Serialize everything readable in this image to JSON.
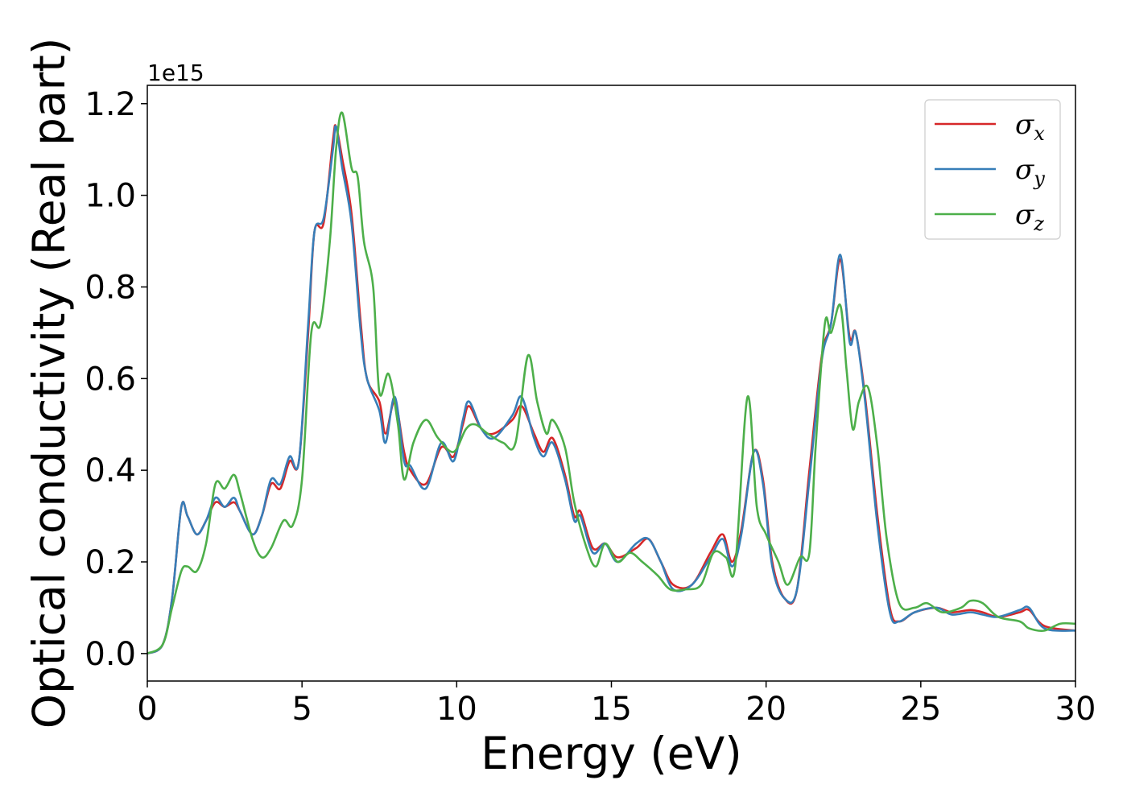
{
  "chart_data": {
    "type": "line",
    "title": "",
    "xlabel": "Energy (eV)",
    "ylabel": "Optical conductivity (Real part)",
    "y_offset_label": "1e15",
    "y_scale": 1000000000000000.0,
    "xlim": [
      0,
      30
    ],
    "ylim": [
      -0.06,
      1.24
    ],
    "x_ticks": [
      0,
      5,
      10,
      15,
      20,
      25,
      30
    ],
    "x_tick_labels": [
      "0",
      "5",
      "10",
      "15",
      "20",
      "25",
      "30"
    ],
    "y_ticks": [
      0.0,
      0.2,
      0.4,
      0.6,
      0.8,
      1.0,
      1.2
    ],
    "y_tick_labels": [
      "0.0",
      "0.2",
      "0.4",
      "0.6",
      "0.8",
      "1.0",
      "1.2"
    ],
    "grid": false,
    "legend_position": "top-right",
    "series": [
      {
        "name": "σx",
        "symbol": "σ",
        "subscript": "x",
        "color": "#d62728",
        "points": [
          [
            0,
            0
          ],
          [
            0.5,
            0.02
          ],
          [
            0.8,
            0.12
          ],
          [
            1.1,
            0.32
          ],
          [
            1.3,
            0.3
          ],
          [
            1.6,
            0.26
          ],
          [
            1.9,
            0.29
          ],
          [
            2.2,
            0.33
          ],
          [
            2.5,
            0.32
          ],
          [
            2.8,
            0.33
          ],
          [
            3.0,
            0.31
          ],
          [
            3.4,
            0.26
          ],
          [
            3.7,
            0.3
          ],
          [
            4.0,
            0.37
          ],
          [
            4.3,
            0.36
          ],
          [
            4.6,
            0.42
          ],
          [
            4.9,
            0.42
          ],
          [
            5.2,
            0.7
          ],
          [
            5.4,
            0.92
          ],
          [
            5.7,
            0.94
          ],
          [
            6.0,
            1.12
          ],
          [
            6.1,
            1.15
          ],
          [
            6.3,
            1.08
          ],
          [
            6.6,
            0.96
          ],
          [
            6.9,
            0.72
          ],
          [
            7.1,
            0.6
          ],
          [
            7.5,
            0.55
          ],
          [
            7.7,
            0.48
          ],
          [
            8.0,
            0.55
          ],
          [
            8.3,
            0.44
          ],
          [
            8.5,
            0.4
          ],
          [
            9.0,
            0.37
          ],
          [
            9.5,
            0.45
          ],
          [
            9.9,
            0.43
          ],
          [
            10.2,
            0.5
          ],
          [
            10.4,
            0.54
          ],
          [
            10.8,
            0.49
          ],
          [
            11.2,
            0.48
          ],
          [
            11.8,
            0.51
          ],
          [
            12.1,
            0.54
          ],
          [
            12.5,
            0.48
          ],
          [
            12.8,
            0.44
          ],
          [
            13.1,
            0.47
          ],
          [
            13.5,
            0.39
          ],
          [
            13.8,
            0.3
          ],
          [
            14.0,
            0.31
          ],
          [
            14.4,
            0.23
          ],
          [
            14.8,
            0.24
          ],
          [
            15.2,
            0.21
          ],
          [
            15.8,
            0.23
          ],
          [
            16.2,
            0.25
          ],
          [
            16.6,
            0.2
          ],
          [
            17.0,
            0.15
          ],
          [
            17.6,
            0.15
          ],
          [
            18.2,
            0.22
          ],
          [
            18.6,
            0.26
          ],
          [
            18.9,
            0.2
          ],
          [
            19.2,
            0.27
          ],
          [
            19.6,
            0.44
          ],
          [
            19.9,
            0.38
          ],
          [
            20.2,
            0.2
          ],
          [
            20.6,
            0.12
          ],
          [
            21.0,
            0.14
          ],
          [
            21.4,
            0.4
          ],
          [
            21.8,
            0.65
          ],
          [
            22.1,
            0.72
          ],
          [
            22.4,
            0.86
          ],
          [
            22.7,
            0.69
          ],
          [
            22.9,
            0.7
          ],
          [
            23.2,
            0.56
          ],
          [
            23.6,
            0.3
          ],
          [
            24.0,
            0.1
          ],
          [
            24.3,
            0.07
          ],
          [
            24.8,
            0.09
          ],
          [
            25.5,
            0.1
          ],
          [
            26.0,
            0.09
          ],
          [
            26.6,
            0.095
          ],
          [
            27.0,
            0.09
          ],
          [
            27.5,
            0.08
          ],
          [
            28.2,
            0.09
          ],
          [
            28.5,
            0.095
          ],
          [
            29.0,
            0.06
          ],
          [
            30,
            0.05
          ]
        ]
      },
      {
        "name": "σy",
        "symbol": "σ",
        "subscript": "y",
        "color": "#377eb8",
        "points": [
          [
            0,
            0
          ],
          [
            0.5,
            0.02
          ],
          [
            0.8,
            0.12
          ],
          [
            1.1,
            0.32
          ],
          [
            1.3,
            0.3
          ],
          [
            1.6,
            0.26
          ],
          [
            1.9,
            0.29
          ],
          [
            2.2,
            0.34
          ],
          [
            2.5,
            0.32
          ],
          [
            2.8,
            0.34
          ],
          [
            3.0,
            0.31
          ],
          [
            3.4,
            0.26
          ],
          [
            3.7,
            0.3
          ],
          [
            4.0,
            0.38
          ],
          [
            4.3,
            0.37
          ],
          [
            4.6,
            0.43
          ],
          [
            4.9,
            0.42
          ],
          [
            5.2,
            0.72
          ],
          [
            5.4,
            0.92
          ],
          [
            5.7,
            0.95
          ],
          [
            6.0,
            1.1
          ],
          [
            6.1,
            1.15
          ],
          [
            6.3,
            1.06
          ],
          [
            6.6,
            0.94
          ],
          [
            6.9,
            0.7
          ],
          [
            7.1,
            0.6
          ],
          [
            7.5,
            0.53
          ],
          [
            7.7,
            0.46
          ],
          [
            8.0,
            0.56
          ],
          [
            8.3,
            0.42
          ],
          [
            8.5,
            0.41
          ],
          [
            9.0,
            0.36
          ],
          [
            9.5,
            0.46
          ],
          [
            9.9,
            0.42
          ],
          [
            10.2,
            0.51
          ],
          [
            10.4,
            0.55
          ],
          [
            10.8,
            0.49
          ],
          [
            11.2,
            0.47
          ],
          [
            11.8,
            0.52
          ],
          [
            12.1,
            0.56
          ],
          [
            12.5,
            0.47
          ],
          [
            12.8,
            0.43
          ],
          [
            13.1,
            0.46
          ],
          [
            13.5,
            0.38
          ],
          [
            13.8,
            0.29
          ],
          [
            14.0,
            0.3
          ],
          [
            14.4,
            0.22
          ],
          [
            14.8,
            0.24
          ],
          [
            15.2,
            0.2
          ],
          [
            15.8,
            0.24
          ],
          [
            16.2,
            0.25
          ],
          [
            16.6,
            0.2
          ],
          [
            17.0,
            0.14
          ],
          [
            17.6,
            0.15
          ],
          [
            18.2,
            0.21
          ],
          [
            18.6,
            0.25
          ],
          [
            18.9,
            0.19
          ],
          [
            19.2,
            0.26
          ],
          [
            19.6,
            0.44
          ],
          [
            19.9,
            0.37
          ],
          [
            20.2,
            0.19
          ],
          [
            20.6,
            0.12
          ],
          [
            21.0,
            0.14
          ],
          [
            21.4,
            0.38
          ],
          [
            21.8,
            0.64
          ],
          [
            22.1,
            0.72
          ],
          [
            22.4,
            0.87
          ],
          [
            22.7,
            0.68
          ],
          [
            22.9,
            0.7
          ],
          [
            23.2,
            0.55
          ],
          [
            23.6,
            0.28
          ],
          [
            24.0,
            0.09
          ],
          [
            24.3,
            0.07
          ],
          [
            24.8,
            0.09
          ],
          [
            25.5,
            0.1
          ],
          [
            26.0,
            0.085
          ],
          [
            26.6,
            0.09
          ],
          [
            27.0,
            0.085
          ],
          [
            27.5,
            0.08
          ],
          [
            28.2,
            0.095
          ],
          [
            28.5,
            0.1
          ],
          [
            29.0,
            0.055
          ],
          [
            30,
            0.05
          ]
        ]
      },
      {
        "name": "σz",
        "symbol": "σ",
        "subscript": "z",
        "color": "#4daf4a",
        "points": [
          [
            0,
            0
          ],
          [
            0.5,
            0.02
          ],
          [
            0.8,
            0.1
          ],
          [
            1.1,
            0.18
          ],
          [
            1.3,
            0.19
          ],
          [
            1.6,
            0.18
          ],
          [
            1.9,
            0.24
          ],
          [
            2.2,
            0.37
          ],
          [
            2.5,
            0.36
          ],
          [
            2.8,
            0.39
          ],
          [
            3.0,
            0.35
          ],
          [
            3.4,
            0.25
          ],
          [
            3.7,
            0.21
          ],
          [
            4.0,
            0.23
          ],
          [
            4.4,
            0.29
          ],
          [
            4.7,
            0.28
          ],
          [
            5.0,
            0.38
          ],
          [
            5.3,
            0.7
          ],
          [
            5.6,
            0.72
          ],
          [
            5.9,
            0.9
          ],
          [
            6.1,
            1.1
          ],
          [
            6.3,
            1.18
          ],
          [
            6.6,
            1.06
          ],
          [
            6.8,
            1.04
          ],
          [
            7.0,
            0.9
          ],
          [
            7.3,
            0.8
          ],
          [
            7.5,
            0.57
          ],
          [
            7.8,
            0.61
          ],
          [
            8.1,
            0.5
          ],
          [
            8.3,
            0.38
          ],
          [
            8.6,
            0.46
          ],
          [
            9.0,
            0.51
          ],
          [
            9.4,
            0.47
          ],
          [
            9.9,
            0.44
          ],
          [
            10.3,
            0.49
          ],
          [
            10.6,
            0.5
          ],
          [
            11.0,
            0.48
          ],
          [
            11.5,
            0.46
          ],
          [
            11.9,
            0.46
          ],
          [
            12.3,
            0.65
          ],
          [
            12.6,
            0.55
          ],
          [
            12.9,
            0.48
          ],
          [
            13.1,
            0.51
          ],
          [
            13.5,
            0.45
          ],
          [
            13.8,
            0.33
          ],
          [
            14.2,
            0.23
          ],
          [
            14.5,
            0.19
          ],
          [
            14.8,
            0.24
          ],
          [
            15.2,
            0.2
          ],
          [
            15.6,
            0.22
          ],
          [
            16.0,
            0.2
          ],
          [
            16.5,
            0.17
          ],
          [
            16.9,
            0.14
          ],
          [
            17.4,
            0.14
          ],
          [
            17.9,
            0.15
          ],
          [
            18.3,
            0.22
          ],
          [
            18.7,
            0.21
          ],
          [
            19.0,
            0.19
          ],
          [
            19.4,
            0.56
          ],
          [
            19.7,
            0.32
          ],
          [
            20.0,
            0.26
          ],
          [
            20.4,
            0.2
          ],
          [
            20.7,
            0.15
          ],
          [
            21.1,
            0.21
          ],
          [
            21.4,
            0.22
          ],
          [
            21.6,
            0.45
          ],
          [
            21.9,
            0.72
          ],
          [
            22.1,
            0.7
          ],
          [
            22.4,
            0.76
          ],
          [
            22.6,
            0.62
          ],
          [
            22.8,
            0.49
          ],
          [
            23.0,
            0.55
          ],
          [
            23.3,
            0.58
          ],
          [
            23.6,
            0.45
          ],
          [
            23.9,
            0.25
          ],
          [
            24.3,
            0.11
          ],
          [
            24.8,
            0.1
          ],
          [
            25.2,
            0.11
          ],
          [
            25.7,
            0.09
          ],
          [
            26.3,
            0.1
          ],
          [
            26.6,
            0.115
          ],
          [
            27.0,
            0.11
          ],
          [
            27.5,
            0.08
          ],
          [
            28.2,
            0.07
          ],
          [
            28.5,
            0.055
          ],
          [
            29.0,
            0.05
          ],
          [
            29.5,
            0.065
          ],
          [
            30,
            0.065
          ]
        ]
      }
    ]
  }
}
